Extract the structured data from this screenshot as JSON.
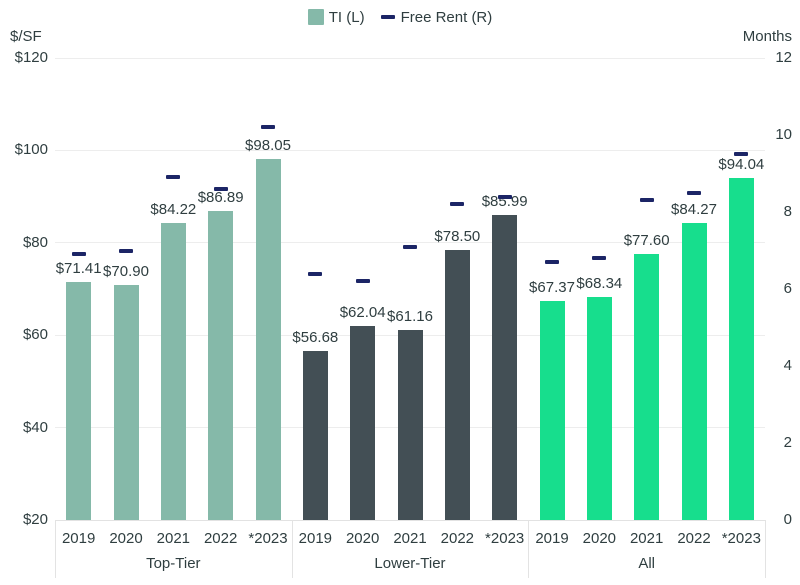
{
  "legend": {
    "ti_label": "TI (L)",
    "free_rent_label": "Free Rent (R)"
  },
  "axes": {
    "left_title": "$/SF",
    "right_title": "Months",
    "left_tick_labels": [
      "$120",
      "$100",
      "$80",
      "$60",
      "$40",
      "$20"
    ],
    "right_tick_labels": [
      "12",
      "10",
      "8",
      "6",
      "4",
      "2",
      "0"
    ]
  },
  "colors": {
    "top_tier_bar": "#85B9A9",
    "lower_tier_bar": "#434F55",
    "all_bar": "#17DE8D",
    "free_rent_marker": "#1C2566",
    "grid": "#EDEDED",
    "axis_line": "#E2E2E2",
    "separator": "#E3E3E3",
    "text": "#2F3E40",
    "background": "#FFFFFF"
  },
  "chart_data": {
    "type": "bar",
    "title": "",
    "categories": [
      "2019",
      "2020",
      "2021",
      "2022",
      "*2023"
    ],
    "left_axis": {
      "title": "$/SF",
      "min": 20,
      "max": 120,
      "step": 20,
      "tick_prefix": "$"
    },
    "right_axis": {
      "title": "Months",
      "min": 0,
      "max": 12,
      "step": 2
    },
    "legend_position": "top-center",
    "grid": true,
    "series_meta": {
      "bars": "TI (L)",
      "dashes": "Free Rent (R)"
    },
    "groups": [
      {
        "name": "Top-Tier",
        "bar_color": "#85B9A9",
        "ti_values": [
          71.41,
          70.9,
          84.22,
          86.89,
          98.05
        ],
        "ti_labels": [
          "$71.41",
          "$70.90",
          "$84.22",
          "$86.89",
          "$98.05"
        ],
        "free_rent_months": [
          6.9,
          7.0,
          8.9,
          8.6,
          10.2
        ]
      },
      {
        "name": "Lower-Tier",
        "bar_color": "#434F55",
        "ti_values": [
          56.68,
          62.04,
          61.16,
          78.5,
          85.99
        ],
        "ti_labels": [
          "$56.68",
          "$62.04",
          "$61.16",
          "$78.50",
          "$85.99"
        ],
        "free_rent_months": [
          6.4,
          6.2,
          7.1,
          8.2,
          8.4
        ]
      },
      {
        "name": "All",
        "bar_color": "#17DE8D",
        "ti_values": [
          67.37,
          68.34,
          77.6,
          84.27,
          94.04
        ],
        "ti_labels": [
          "$67.37",
          "$68.34",
          "$77.60",
          "$84.27",
          "$94.04"
        ],
        "free_rent_months": [
          6.7,
          6.8,
          8.3,
          8.5,
          9.5
        ]
      }
    ]
  }
}
